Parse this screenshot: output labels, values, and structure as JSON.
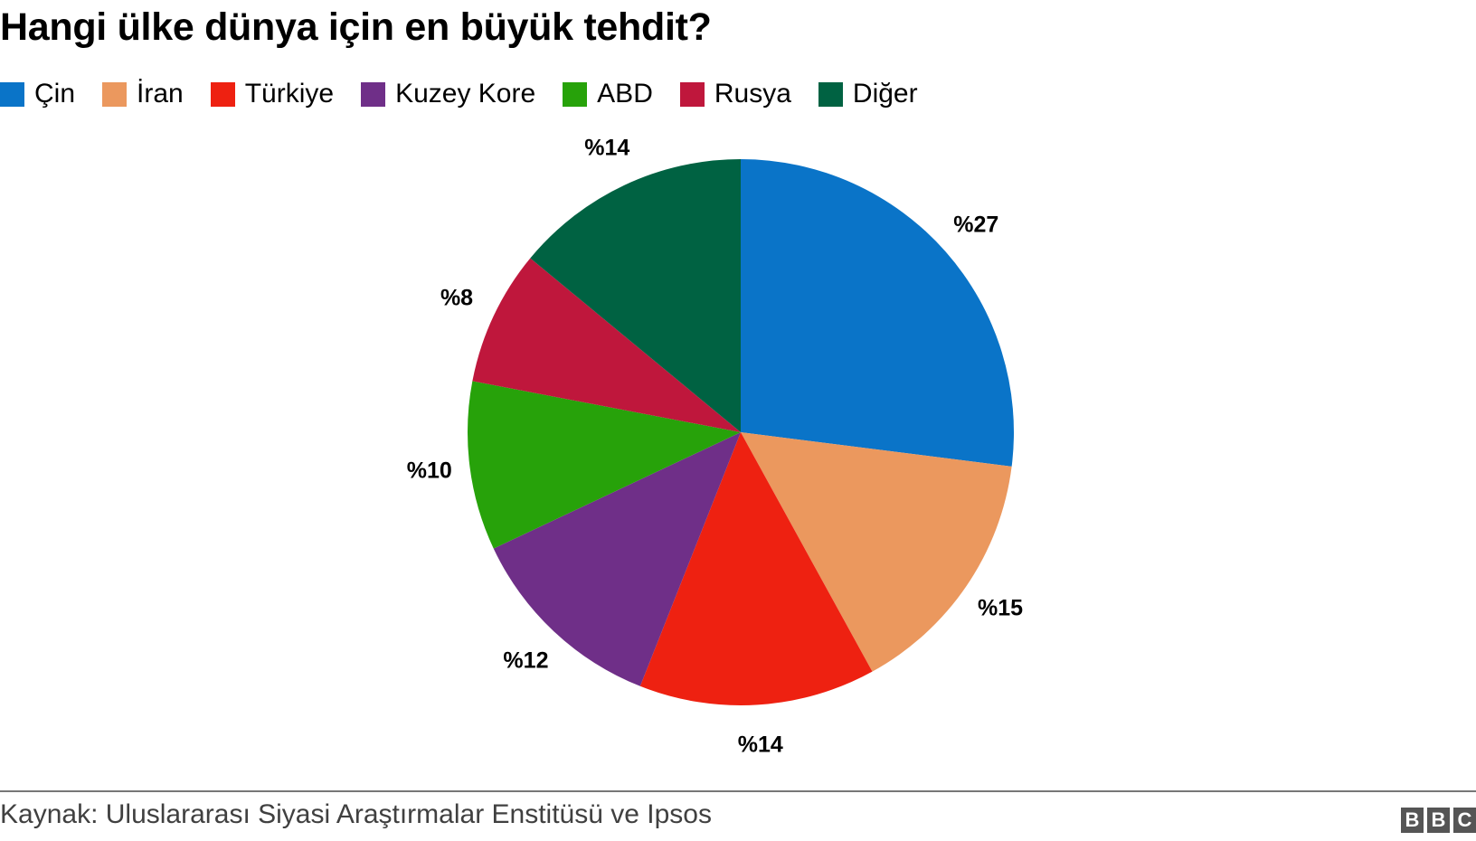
{
  "title": "Hangi ülke dünya için en büyük tehdit?",
  "legend": [
    {
      "label": "Çin",
      "color": "#0a74c8"
    },
    {
      "label": "İran",
      "color": "#eb985e"
    },
    {
      "label": "Türkiye",
      "color": "#ee2111"
    },
    {
      "label": "Kuzey Kore",
      "color": "#6f2f88"
    },
    {
      "label": "ABD",
      "color": "#27a20a"
    },
    {
      "label": "Rusya",
      "color": "#bf173c"
    },
    {
      "label": "Diğer",
      "color": "#006242"
    }
  ],
  "labels": [
    "%27",
    "%15",
    "%14",
    "%12",
    "%10",
    "%8",
    "%14"
  ],
  "source": "Kaynak: Uluslararası Siyasi Araştırmalar Enstitüsü ve Ipsos",
  "logo": [
    "B",
    "B",
    "C"
  ],
  "chart_data": {
    "type": "pie",
    "title": "Hangi ülke dünya için en büyük tehdit?",
    "categories": [
      "Çin",
      "İran",
      "Türkiye",
      "Kuzey Kore",
      "ABD",
      "Rusya",
      "Diğer"
    ],
    "values": [
      27,
      15,
      14,
      12,
      10,
      8,
      14
    ],
    "unit": "%",
    "colors": [
      "#0a74c8",
      "#eb985e",
      "#ee2111",
      "#6f2f88",
      "#27a20a",
      "#bf173c",
      "#006242"
    ],
    "start_angle": "12 o'clock, clockwise",
    "legend_position": "top",
    "source": "Kaynak: Uluslararası Siyasi Araştırmalar Enstitüsü ve Ipsos"
  }
}
